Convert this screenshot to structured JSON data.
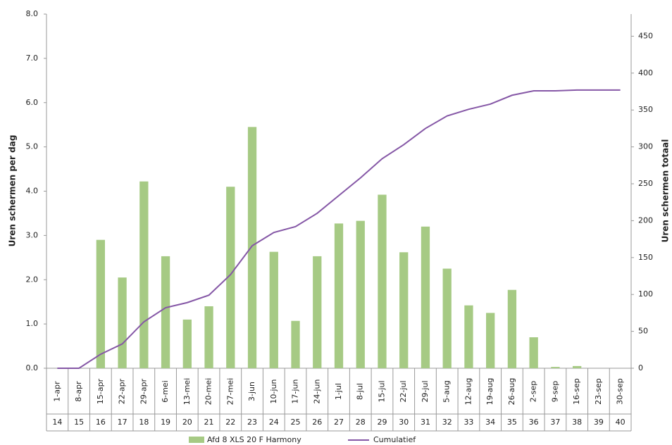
{
  "chart_data": {
    "type": "bar-line",
    "y_label": "Uren schermen per dag",
    "y2_label": "Uren schermen totaal",
    "categories": [
      "1-apr",
      "8-apr",
      "15-apr",
      "22-apr",
      "29-apr",
      "6-mei",
      "13-mei",
      "20-mei",
      "27-mei",
      "3-jun",
      "10-jun",
      "17-jun",
      "24-jun",
      "1-jul",
      "8-jul",
      "15-jul",
      "22-jul",
      "29-jul",
      "5-aug",
      "12-aug",
      "19-aug",
      "26-aug",
      "2-sep",
      "9-sep",
      "16-sep",
      "23-sep",
      "30-sep"
    ],
    "weeks": [
      "14",
      "15",
      "16",
      "17",
      "18",
      "19",
      "20",
      "21",
      "22",
      "23",
      "24",
      "25",
      "26",
      "27",
      "28",
      "29",
      "30",
      "31",
      "32",
      "33",
      "34",
      "35",
      "36",
      "37",
      "38",
      "39",
      "40"
    ],
    "series": [
      {
        "name": "Afd 8 XLS 20 F Harmony",
        "type": "bar",
        "color": "#a6ca84",
        "values": [
          0,
          0,
          2.9,
          2.05,
          4.22,
          2.53,
          1.1,
          1.4,
          4.1,
          5.45,
          2.63,
          1.07,
          2.53,
          3.27,
          3.33,
          3.92,
          2.62,
          3.2,
          2.25,
          1.42,
          1.25,
          1.77,
          0.7,
          0.03,
          0.05,
          0,
          0
        ]
      },
      {
        "name": "Cumulatief",
        "type": "line",
        "axis": "y2",
        "color": "#8557a6",
        "values": [
          0,
          0,
          19,
          33,
          63,
          82,
          89,
          99,
          127,
          166,
          184,
          192,
          210,
          234,
          258,
          284,
          303,
          325,
          342,
          351,
          358,
          370,
          376,
          376,
          377,
          377,
          377
        ]
      }
    ],
    "ylim": [
      0,
      8
    ],
    "yticks": [
      {
        "value": 0,
        "label": "0.0"
      },
      {
        "value": 1,
        "label": "1.0"
      },
      {
        "value": 2,
        "label": "2.0"
      },
      {
        "value": 3,
        "label": "3.0"
      },
      {
        "value": 4,
        "label": "4.0"
      },
      {
        "value": 5,
        "label": "5.0"
      },
      {
        "value": 6,
        "label": "6.0"
      },
      {
        "value": 7,
        "label": "7.0"
      },
      {
        "value": 8,
        "label": "8.0"
      }
    ],
    "y2lim": [
      0,
      480
    ],
    "y2ticks": [
      0,
      50,
      100,
      150,
      200,
      250,
      300,
      350,
      400,
      450
    ]
  }
}
